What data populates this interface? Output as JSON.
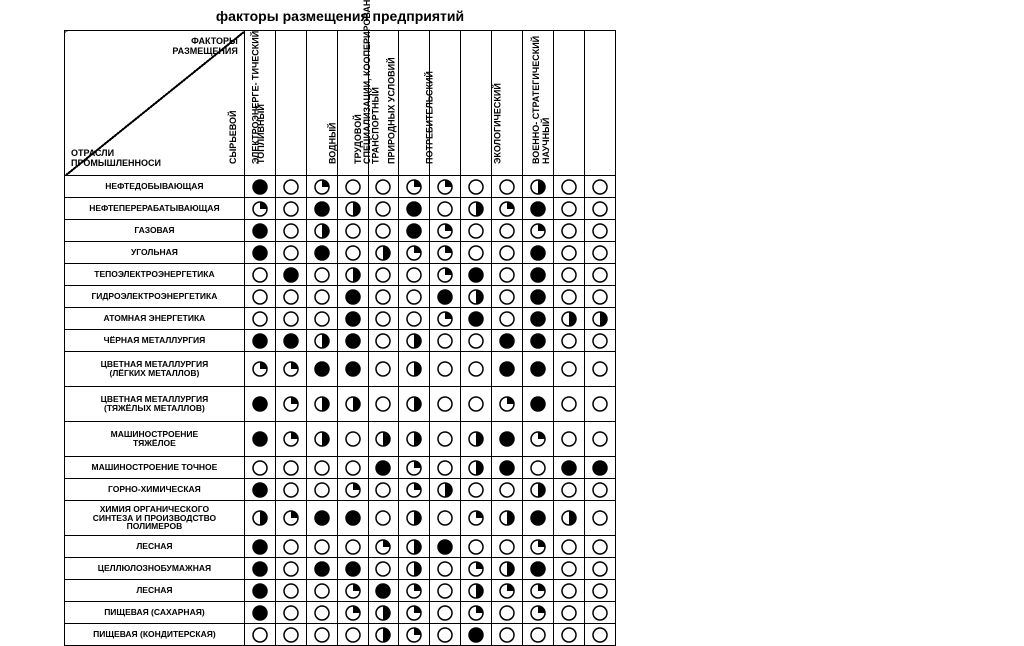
{
  "title": "факторы размещения предприятий",
  "diag_top": "ФАКТОРЫ\nРАЗМЕЩЕНИЯ",
  "diag_bottom": "ОТРАСЛИ\nПРОМЫШЛЕННОСИ",
  "columns": [
    "СЫРЬЕВОЙ",
    "ТОПЛИВНЫЙ",
    "ЭЛЕКТРОЭНЕРГЕ-\nТИЧЕСКИЙ",
    "ВОДНЫЙ",
    "ТРУДОВОЙ",
    "ТРАНСПОРТНЫЙ",
    "ПРИРОДНЫХ\nУСЛОВИЙ",
    "ПОТРЕБИТЕЛЬСКИЙ",
    "СПЕЦИАЛИЗАЦИИ,\nКООПЕРИРОВАНИЯ\nИ КОМБИНИРОВАНИЯ",
    "ЭКОЛОГИЧЕСКИЙ",
    "НАУЧНЫЙ",
    "ВОЕННО-\nСТРАТЕГИЧЕСКИЙ"
  ],
  "rows": [
    {
      "label": "НЕФТЕДОБЫВАЮЩАЯ",
      "cells": [
        "full",
        "empty",
        "qr",
        "empty",
        "empty",
        "qr",
        "qr",
        "empty",
        "empty",
        "half",
        "empty",
        "empty"
      ]
    },
    {
      "label": "НЕФТЕПЕРЕРАБАТЫВАЮЩАЯ",
      "cells": [
        "qr",
        "empty",
        "full",
        "half",
        "empty",
        "full",
        "empty",
        "half",
        "qr",
        "full",
        "empty",
        "empty"
      ]
    },
    {
      "label": "ГАЗОВАЯ",
      "cells": [
        "full",
        "empty",
        "half",
        "empty",
        "empty",
        "full",
        "qr",
        "empty",
        "empty",
        "qr",
        "empty",
        "empty"
      ]
    },
    {
      "label": "УГОЛЬНАЯ",
      "cells": [
        "full",
        "empty",
        "full",
        "empty",
        "half",
        "qr",
        "qr",
        "empty",
        "empty",
        "full",
        "empty",
        "empty"
      ]
    },
    {
      "label": "ТЕПОЭЛЕКТРОЭНЕРГЕТИКА",
      "cells": [
        "empty",
        "full",
        "empty",
        "half",
        "empty",
        "empty",
        "qr",
        "full",
        "empty",
        "full",
        "empty",
        "empty"
      ]
    },
    {
      "label": "ГИДРОЭЛЕКТРОЭНЕРГЕТИКА",
      "cells": [
        "empty",
        "empty",
        "empty",
        "full",
        "empty",
        "empty",
        "full",
        "half",
        "empty",
        "full",
        "empty",
        "empty"
      ]
    },
    {
      "label": "АТОМНАЯ ЭНЕРГЕТИКА",
      "cells": [
        "empty",
        "empty",
        "empty",
        "full",
        "empty",
        "empty",
        "qr",
        "full",
        "empty",
        "full",
        "half",
        "half"
      ]
    },
    {
      "label": "ЧЁРНАЯ МЕТАЛЛУРГИЯ",
      "cells": [
        "full",
        "full",
        "half",
        "full",
        "empty",
        "half",
        "empty",
        "empty",
        "full",
        "full",
        "empty",
        "empty"
      ]
    },
    {
      "label": "ЦВЕТНАЯ МЕТАЛЛУРГИЯ\n(ЛЁГКИХ МЕТАЛЛОВ)",
      "tall": true,
      "cells": [
        "qr",
        "qr",
        "full",
        "full",
        "empty",
        "half",
        "empty",
        "empty",
        "full",
        "full",
        "empty",
        "empty"
      ]
    },
    {
      "label": "ЦВЕТНАЯ МЕТАЛЛУРГИЯ\n(ТЯЖЁЛЫХ МЕТАЛЛОВ)",
      "tall": true,
      "cells": [
        "full",
        "qr",
        "half",
        "half",
        "empty",
        "half",
        "empty",
        "empty",
        "qr",
        "full",
        "empty",
        "empty"
      ]
    },
    {
      "label": "МАШИНОСТРОЕНИЕ\nТЯЖЁЛОЕ",
      "tall": true,
      "cells": [
        "full",
        "qr",
        "half",
        "empty",
        "half",
        "half",
        "empty",
        "half",
        "full",
        "qr",
        "empty",
        "empty"
      ]
    },
    {
      "label": "МАШИНОСТРОЕНИЕ ТОЧНОЕ",
      "cells": [
        "empty",
        "empty",
        "empty",
        "empty",
        "full",
        "qr",
        "empty",
        "half",
        "full",
        "empty",
        "full",
        "full"
      ]
    },
    {
      "label": "ГОРНО-ХИМИЧЕСКАЯ",
      "cells": [
        "full",
        "empty",
        "empty",
        "qr",
        "empty",
        "qr",
        "half",
        "empty",
        "empty",
        "half",
        "empty",
        "empty"
      ]
    },
    {
      "label": "ХИМИЯ ОРГАНИЧЕСКОГО\nСИНТЕЗА И ПРОИЗВОДСТВО\nПОЛИМЕРОВ",
      "tall": true,
      "cells": [
        "half",
        "qr",
        "full",
        "full",
        "empty",
        "half",
        "empty",
        "qr",
        "half",
        "full",
        "half",
        "empty"
      ]
    },
    {
      "label": "ЛЕСНАЯ",
      "cells": [
        "full",
        "empty",
        "empty",
        "empty",
        "qr",
        "half",
        "full",
        "empty",
        "empty",
        "qr",
        "empty",
        "empty"
      ]
    },
    {
      "label": "ЦЕЛЛЮЛОЗНОБУМАЖНАЯ",
      "cells": [
        "full",
        "empty",
        "full",
        "full",
        "empty",
        "half",
        "empty",
        "qr",
        "half",
        "full",
        "empty",
        "empty"
      ]
    },
    {
      "label": "ЛЕСНАЯ",
      "cells": [
        "full",
        "empty",
        "empty",
        "qr",
        "full",
        "qr",
        "empty",
        "half",
        "qr",
        "qr",
        "empty",
        "empty"
      ]
    },
    {
      "label": "ПИЩЕВАЯ (САХАРНАЯ)",
      "cells": [
        "full",
        "empty",
        "empty",
        "qr",
        "half",
        "qr",
        "empty",
        "qr",
        "empty",
        "qr",
        "empty",
        "empty"
      ]
    },
    {
      "label": "ПИЩЕВАЯ (КОНДИТЕРСКАЯ)",
      "cells": [
        "empty",
        "empty",
        "empty",
        "empty",
        "half",
        "qr",
        "empty",
        "full",
        "empty",
        "empty",
        "empty",
        "empty"
      ]
    }
  ],
  "harvey": {
    "radius": 7,
    "stroke": "#000000",
    "stroke_width": 1.5,
    "fill": "#000000",
    "bg": "#ffffff"
  }
}
